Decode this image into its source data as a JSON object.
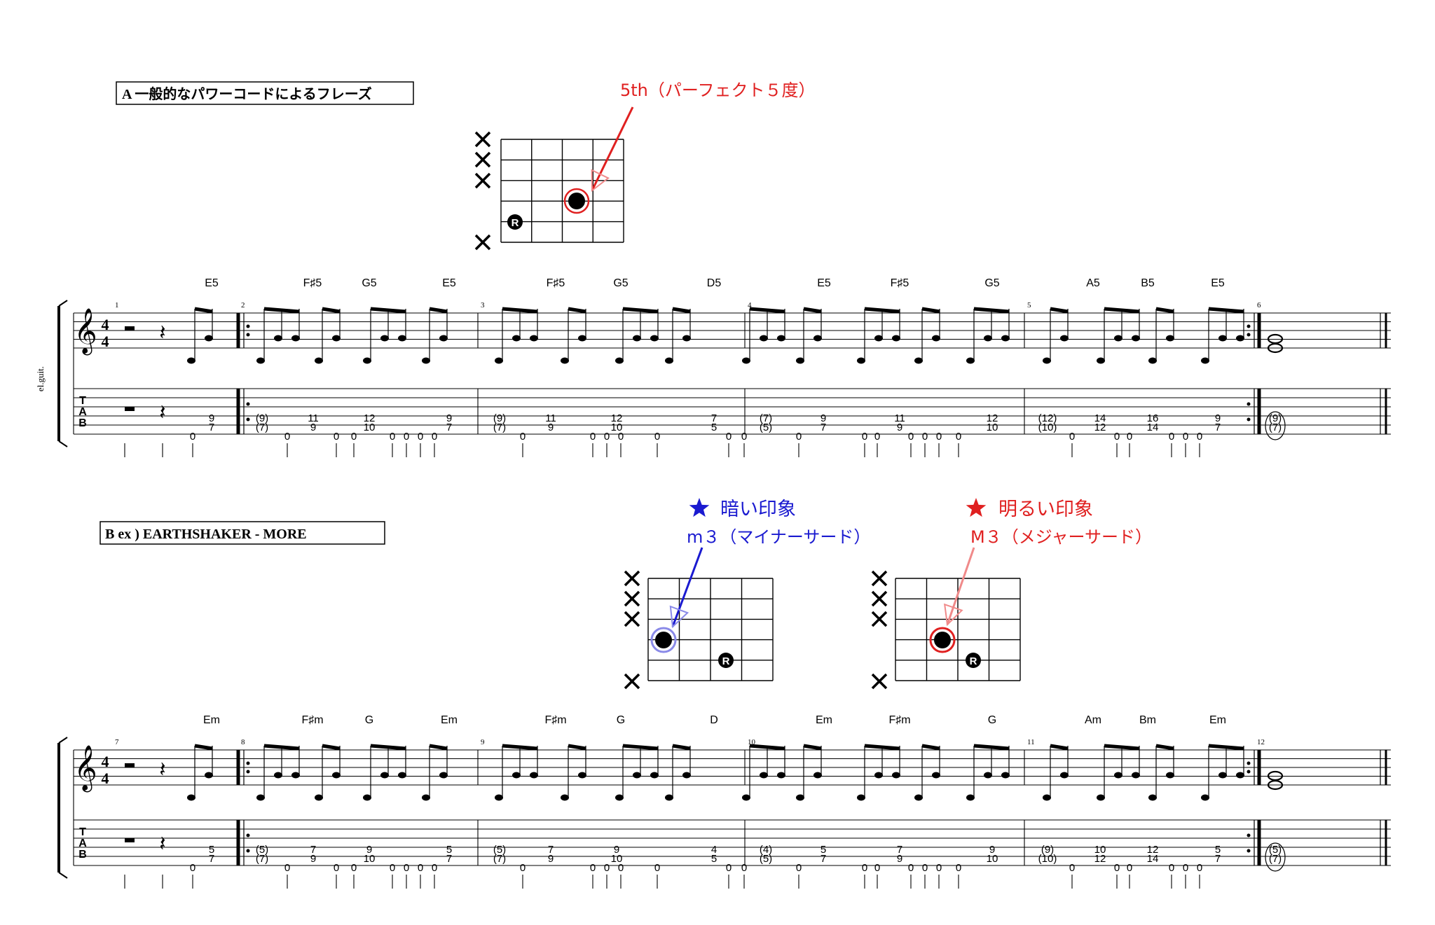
{
  "colors": {
    "ink": "#000000",
    "red": "#e02020",
    "blue": "#1a1ad0",
    "red_light": "#f08a8a",
    "blue_light": "#8a8ae8"
  },
  "instrument_label": "el.guit.",
  "sectionA": {
    "title": "A 一般的なパワーコードによるフレーズ",
    "annotation": "5th（パーフェクト５度）",
    "root_marker": "R",
    "chords": [
      "E5",
      "F♯5",
      "G5",
      "E5",
      "F♯5",
      "G5",
      "D5",
      "E5",
      "F♯5",
      "G5",
      "A5",
      "B5",
      "E5"
    ],
    "measure_numbers": [
      "1",
      "2",
      "3",
      "4",
      "5",
      "6"
    ],
    "tab_upper": [
      "9",
      "(9)",
      "11",
      "12",
      "9",
      "(9)",
      "11",
      "12",
      "7",
      "(7)",
      "9",
      "11",
      "12",
      "(12)",
      "14",
      "16",
      "9",
      "(9)"
    ],
    "tab_lower": [
      "7",
      "(7)",
      "9",
      "10",
      "7",
      "(7)",
      "9",
      "10",
      "5",
      "(5)",
      "7",
      "9",
      "10",
      "(10)",
      "12",
      "14",
      "7",
      "(7)"
    ],
    "tab_open": "0"
  },
  "sectionB": {
    "title": "B ex ) EARTHSHAKER - MORE",
    "dark_label": "暗い印象",
    "dark_sub": "m３（マイナーサード）",
    "bright_label": "明るい印象",
    "bright_sub": "M３（メジャーサード）",
    "root_marker": "R",
    "chords": [
      "Em",
      "F♯m",
      "G",
      "Em",
      "F♯m",
      "G",
      "D",
      "Em",
      "F♯m",
      "G",
      "Am",
      "Bm",
      "Em"
    ],
    "measure_numbers": [
      "7",
      "8",
      "9",
      "10",
      "11",
      "12"
    ],
    "tab_upper": [
      "5",
      "(5)",
      "7",
      "9",
      "5",
      "(5)",
      "7",
      "9",
      "4",
      "(4)",
      "5",
      "7",
      "9",
      "(9)",
      "10",
      "12",
      "5",
      "(5)"
    ],
    "tab_lower": [
      "7",
      "(7)",
      "9",
      "10",
      "7",
      "(7)",
      "9",
      "10",
      "5",
      "(5)",
      "7",
      "9",
      "10",
      "(10)",
      "12",
      "14",
      "7",
      "(7)"
    ],
    "tab_open": "0"
  }
}
